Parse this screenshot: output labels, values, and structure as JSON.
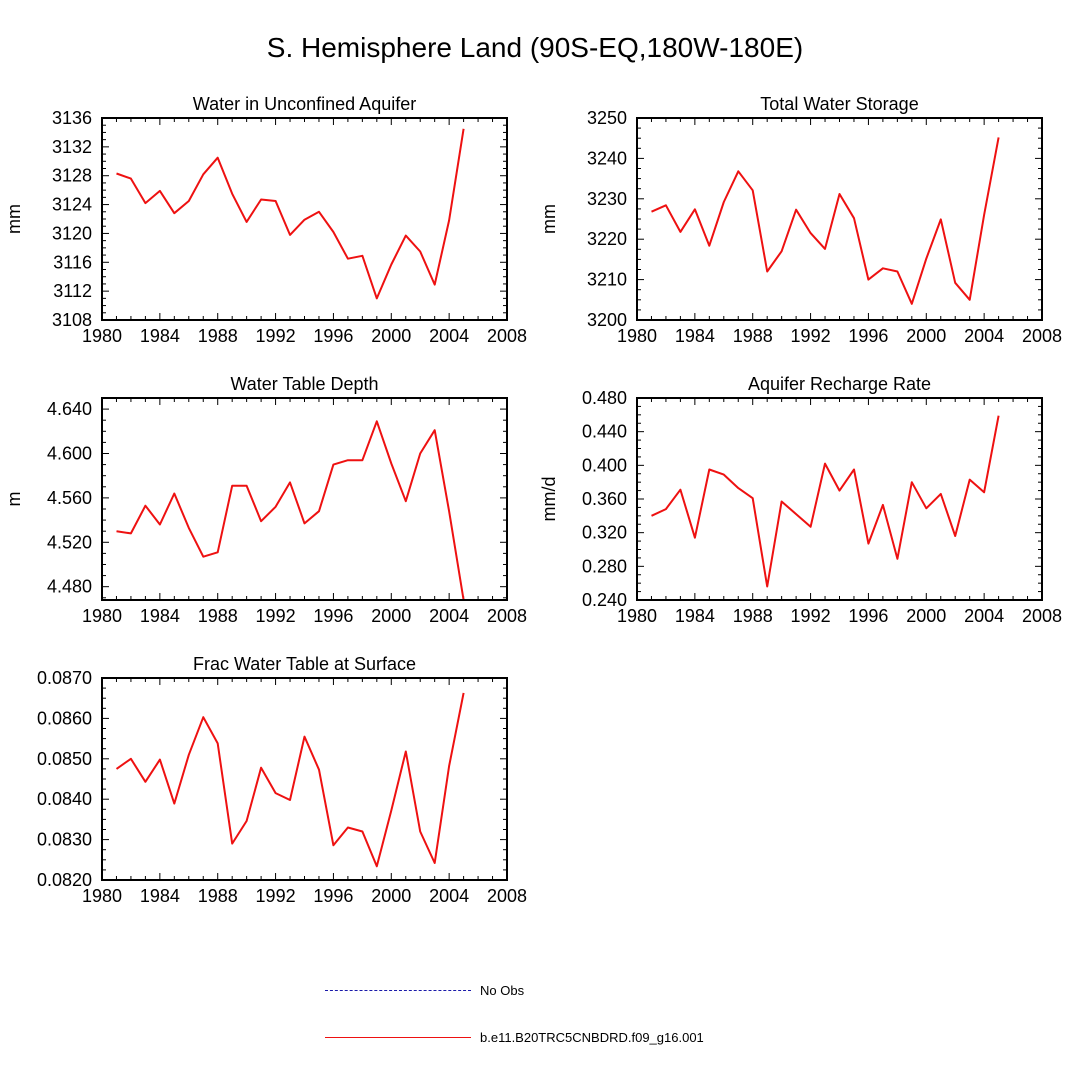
{
  "figure_title": "S. Hemisphere Land (90S-EQ,180W-180E)",
  "chart_data": [
    {
      "type": "line",
      "title": "Water in Unconfined Aquifer",
      "xlabel": "",
      "ylabel": "mm",
      "x": [
        1981,
        1982,
        1983,
        1984,
        1985,
        1986,
        1987,
        1988,
        1989,
        1990,
        1991,
        1992,
        1993,
        1994,
        1995,
        1996,
        1997,
        1998,
        1999,
        2000,
        2001,
        2002,
        2003,
        2004,
        2005
      ],
      "series": [
        {
          "name": "b.e11.B20TRC5CNBDRD.f09_g16.001",
          "color": "#ee1111",
          "values": [
            3128.3,
            3127.6,
            3124.2,
            3125.9,
            3122.8,
            3124.5,
            3128.2,
            3130.5,
            3125.5,
            3121.6,
            3124.7,
            3124.5,
            3119.8,
            3121.9,
            3123.0,
            3120.2,
            3116.5,
            3116.9,
            3111.0,
            3115.7,
            3119.7,
            3117.5,
            3112.9,
            3121.8,
            3134.5
          ]
        }
      ],
      "xlim": [
        1980,
        2008
      ],
      "ylim": [
        3108,
        3136
      ],
      "xticks": [
        "1980",
        "1984",
        "1988",
        "1992",
        "1996",
        "2000",
        "2004",
        "2008"
      ],
      "yticks": [
        "3108",
        "3112",
        "3116",
        "3120",
        "3124",
        "3128",
        "3132",
        "3136"
      ]
    },
    {
      "type": "line",
      "title": "Total Water Storage",
      "xlabel": "",
      "ylabel": "mm",
      "x": [
        1981,
        1982,
        1983,
        1984,
        1985,
        1986,
        1987,
        1988,
        1989,
        1990,
        1991,
        1992,
        1993,
        1994,
        1995,
        1996,
        1997,
        1998,
        1999,
        2000,
        2001,
        2002,
        2003,
        2004,
        2005
      ],
      "series": [
        {
          "name": "b.e11.B20TRC5CNBDRD.f09_g16.001",
          "color": "#ee1111",
          "values": [
            3226.8,
            3228.4,
            3221.8,
            3227.4,
            3218.4,
            3229.2,
            3236.8,
            3232.1,
            3212.0,
            3217.0,
            3227.3,
            3221.5,
            3217.6,
            3231.2,
            3225.2,
            3210.0,
            3212.8,
            3212.0,
            3204.0,
            3215.2,
            3224.9,
            3209.2,
            3205.0,
            3226.0,
            3245.2
          ]
        }
      ],
      "xlim": [
        1980,
        2008
      ],
      "ylim": [
        3200,
        3250
      ],
      "xticks": [
        "1980",
        "1984",
        "1988",
        "1992",
        "1996",
        "2000",
        "2004",
        "2008"
      ],
      "yticks": [
        "3200",
        "3210",
        "3220",
        "3230",
        "3240",
        "3250"
      ]
    },
    {
      "type": "line",
      "title": "Water Table Depth",
      "xlabel": "",
      "ylabel": "m",
      "x": [
        1981,
        1982,
        1983,
        1984,
        1985,
        1986,
        1987,
        1988,
        1989,
        1990,
        1991,
        1992,
        1993,
        1994,
        1995,
        1996,
        1997,
        1998,
        1999,
        2000,
        2001,
        2002,
        2003,
        2004,
        2005
      ],
      "series": [
        {
          "name": "b.e11.B20TRC5CNBDRD.f09_g16.001",
          "color": "#ee1111",
          "values": [
            4.53,
            4.528,
            4.553,
            4.536,
            4.564,
            4.533,
            4.507,
            4.511,
            4.571,
            4.571,
            4.539,
            4.552,
            4.574,
            4.537,
            4.548,
            4.59,
            4.594,
            4.594,
            4.629,
            4.591,
            4.557,
            4.6,
            4.621,
            4.548,
            4.468
          ]
        }
      ],
      "xlim": [
        1980,
        2008
      ],
      "ylim": [
        4.468,
        4.65
      ],
      "xticks": [
        "1980",
        "1984",
        "1988",
        "1992",
        "1996",
        "2000",
        "2004",
        "2008"
      ],
      "yticks": [
        "4.480",
        "4.520",
        "4.560",
        "4.600",
        "4.640"
      ]
    },
    {
      "type": "line",
      "title": "Aquifer Recharge Rate",
      "xlabel": "",
      "ylabel": "mm/d",
      "x": [
        1981,
        1982,
        1983,
        1984,
        1985,
        1986,
        1987,
        1988,
        1989,
        1990,
        1991,
        1992,
        1993,
        1994,
        1995,
        1996,
        1997,
        1998,
        1999,
        2000,
        2001,
        2002,
        2003,
        2004,
        2005
      ],
      "series": [
        {
          "name": "b.e11.B20TRC5CNBDRD.f09_g16.001",
          "color": "#ee1111",
          "values": [
            0.34,
            0.348,
            0.371,
            0.314,
            0.395,
            0.389,
            0.373,
            0.361,
            0.256,
            0.357,
            0.342,
            0.327,
            0.402,
            0.37,
            0.395,
            0.307,
            0.353,
            0.289,
            0.38,
            0.349,
            0.366,
            0.316,
            0.383,
            0.368,
            0.459
          ]
        }
      ],
      "xlim": [
        1980,
        2008
      ],
      "ylim": [
        0.24,
        0.48
      ],
      "xticks": [
        "1980",
        "1984",
        "1988",
        "1992",
        "1996",
        "2000",
        "2004",
        "2008"
      ],
      "yticks": [
        "0.240",
        "0.280",
        "0.320",
        "0.360",
        "0.400",
        "0.440",
        "0.480"
      ]
    },
    {
      "type": "line",
      "title": "Frac Water Table at Surface",
      "xlabel": "",
      "ylabel": "",
      "x": [
        1981,
        1982,
        1983,
        1984,
        1985,
        1986,
        1987,
        1988,
        1989,
        1990,
        1991,
        1992,
        1993,
        1994,
        1995,
        1996,
        1997,
        1998,
        1999,
        2000,
        2001,
        2002,
        2003,
        2004,
        2005
      ],
      "series": [
        {
          "name": "b.e11.B20TRC5CNBDRD.f09_g16.001",
          "color": "#ee1111",
          "values": [
            0.08475,
            0.085,
            0.08443,
            0.08498,
            0.08389,
            0.0851,
            0.08603,
            0.08538,
            0.0829,
            0.08346,
            0.08478,
            0.08415,
            0.08398,
            0.08555,
            0.08473,
            0.08286,
            0.0833,
            0.0832,
            0.08234,
            0.08372,
            0.08518,
            0.0832,
            0.08242,
            0.08482,
            0.08663
          ]
        }
      ],
      "xlim": [
        1980,
        2008
      ],
      "ylim": [
        0.082,
        0.087
      ],
      "xticks": [
        "1980",
        "1984",
        "1988",
        "1992",
        "1996",
        "2000",
        "2004",
        "2008"
      ],
      "yticks": [
        "0.0820",
        "0.0830",
        "0.0840",
        "0.0850",
        "0.0860",
        "0.0870"
      ]
    }
  ],
  "legend": {
    "items": [
      {
        "label": "No Obs",
        "color": "#1a1aaa",
        "style": "dashed"
      },
      {
        "label": "b.e11.B20TRC5CNBDRD.f09_g16.001",
        "color": "#ee1111",
        "style": "solid"
      }
    ]
  }
}
